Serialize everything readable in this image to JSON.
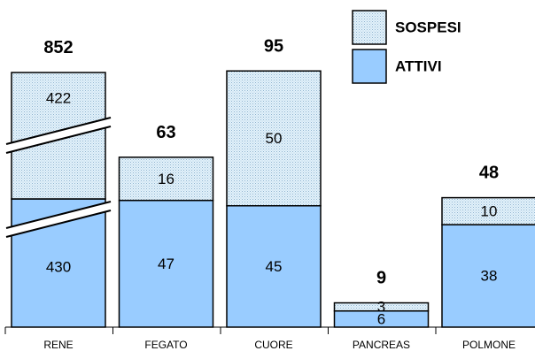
{
  "chart_data": {
    "type": "bar",
    "stacked": true,
    "axis_break_on": "RENE",
    "categories": [
      "RENE",
      "FEGATO",
      "CUORE",
      "PANCREAS",
      "POLMONE"
    ],
    "series": [
      {
        "name": "ATTIVI",
        "values": [
          430,
          47,
          45,
          6,
          38
        ],
        "color": "#99ccff",
        "pattern": "solid"
      },
      {
        "name": "SOSPESI",
        "values": [
          422,
          16,
          50,
          3,
          10
        ],
        "color": "#cfe5f3",
        "pattern": "dotted"
      }
    ],
    "totals": [
      "852",
      "63",
      "95",
      "9",
      "48"
    ],
    "legend": {
      "placement": "top-right",
      "order": [
        "SOSPESI",
        "ATTIVI"
      ]
    },
    "grid": false
  }
}
